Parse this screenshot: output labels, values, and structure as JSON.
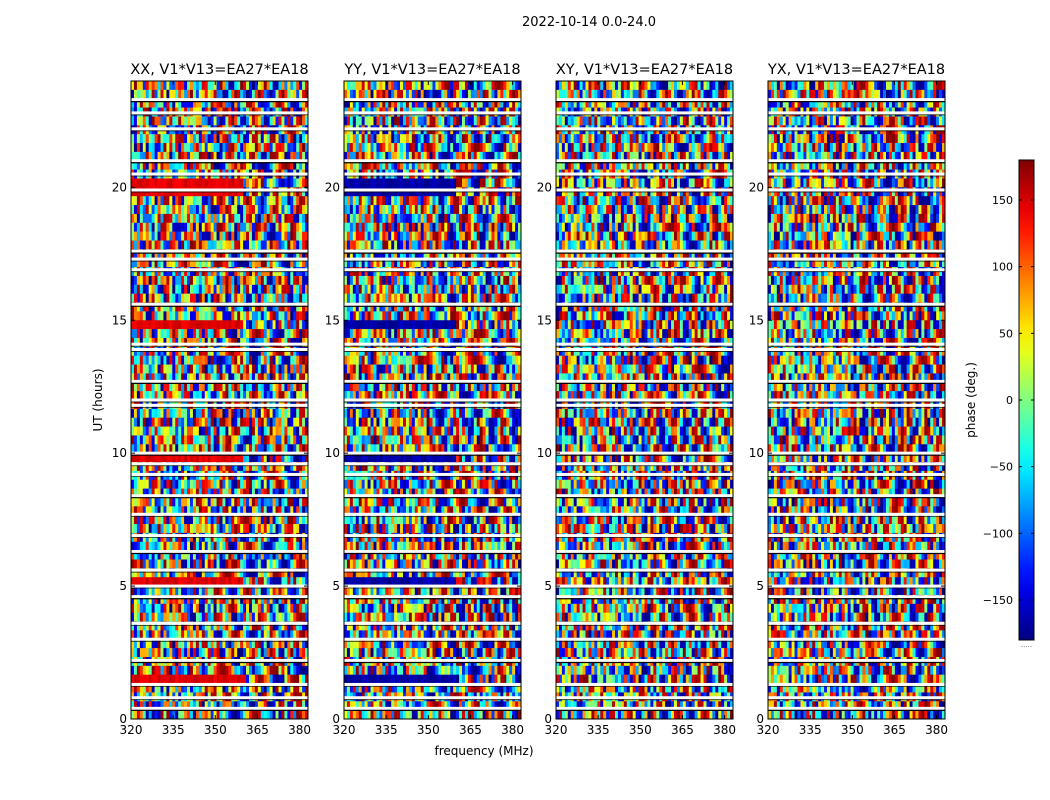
{
  "figure": {
    "suptitle": "2022-10-14 0.0-24.0",
    "xlabel": "frequency (MHz)",
    "ylabel": "UT (hours)"
  },
  "chart_data": {
    "type": "heatmap",
    "value_label": "phase (deg.)",
    "colormap": "jet",
    "x_range": [
      320,
      383
    ],
    "y_range": [
      0,
      24
    ],
    "x_ticks": [
      320,
      335,
      350,
      365,
      380
    ],
    "y_ticks": [
      0,
      5,
      10,
      15,
      20
    ],
    "colorbar": {
      "label": "phase (deg.)",
      "range": [
        -180,
        180
      ],
      "ticks": [
        -150,
        -100,
        -50,
        0,
        50,
        100,
        150
      ],
      "tick_labels": [
        "−150",
        "−100",
        "−50",
        "0",
        "50",
        "100",
        "150"
      ],
      "footer": "....."
    },
    "panels": [
      {
        "title": "XX, V1*V13=EA27*EA18",
        "tone_phase": 145
      },
      {
        "title": "YY, V1*V13=EA27*EA18",
        "tone_phase": -165
      },
      {
        "title": "XY, V1*V13=EA27*EA18",
        "tone_phase": null
      },
      {
        "title": "YX, V1*V13=EA27*EA18",
        "tone_phase": null
      }
    ],
    "flagged_rows_hours": [
      23.3,
      22.8,
      22.2,
      21.0,
      20.5,
      19.9,
      17.6,
      17.3,
      16.9,
      15.6,
      14.1,
      13.9,
      12.7,
      12.0,
      11.8,
      10.0,
      9.6,
      9.2,
      8.4,
      7.7,
      6.9,
      6.3,
      5.6,
      5.0,
      4.6,
      3.6,
      3.0,
      2.2,
      1.3,
      0.8,
      0.4
    ]
  }
}
